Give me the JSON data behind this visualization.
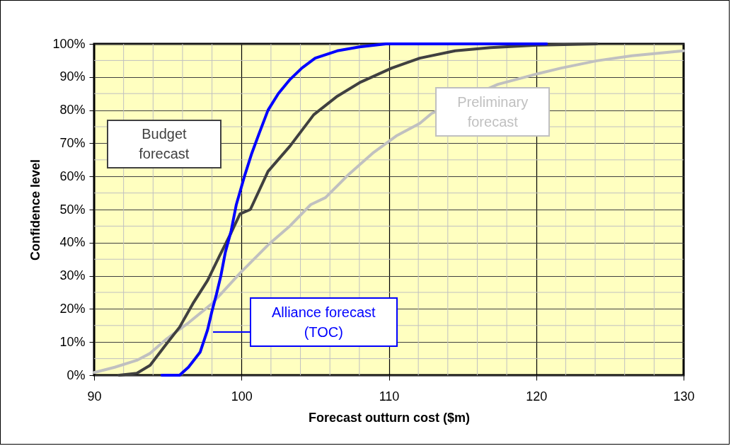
{
  "chart_data": {
    "type": "line",
    "xlabel": "Forecast outturn cost ($m)",
    "ylabel": "Confidence level",
    "xlim": [
      90,
      130
    ],
    "xticks": [
      90,
      100,
      110,
      120,
      130
    ],
    "ylim": [
      0,
      100
    ],
    "yticks": [
      {
        "value": 0,
        "label": "0%"
      },
      {
        "value": 10,
        "label": "10%"
      },
      {
        "value": 20,
        "label": "20%"
      },
      {
        "value": 30,
        "label": "30%"
      },
      {
        "value": 40,
        "label": "40%"
      },
      {
        "value": 50,
        "label": "50%"
      },
      {
        "value": 60,
        "label": "60%"
      },
      {
        "value": 70,
        "label": "70%"
      },
      {
        "value": 80,
        "label": "80%"
      },
      {
        "value": 90,
        "label": "90%"
      },
      {
        "value": 100,
        "label": "100%"
      }
    ],
    "grid": true,
    "series": [
      {
        "name": "Preliminary forecast",
        "color": "#c0c0c0",
        "x": [
          90,
          91.4,
          92.9,
          93.8,
          94.9,
          96.4,
          98.0,
          99.9,
          101.8,
          103.3,
          104.7,
          105.7,
          107.3,
          108.9,
          110.5,
          112.1,
          112.9,
          117.4,
          120.1,
          121.7,
          124.1,
          126.5,
          130
        ],
        "values": [
          0.8,
          2.4,
          4.5,
          6.6,
          10.9,
          15.8,
          21.6,
          30.8,
          39.3,
          45.1,
          51.5,
          53.6,
          60.7,
          67,
          72.2,
          76,
          79,
          87.8,
          91,
          92.7,
          94.9,
          96.4,
          97.9
        ]
      },
      {
        "name": "Budget forecast",
        "color": "#404040",
        "x": [
          91.7,
          92.9,
          93.8,
          94.8,
          95.8,
          96.7,
          97.7,
          98.5,
          99.3,
          99.9,
          100.6,
          101.8,
          103.3,
          104.9,
          106.5,
          108.1,
          110.2,
          112.1,
          114.5,
          116.9,
          120.1,
          124.1
        ],
        "values": [
          0,
          0.6,
          3,
          8.8,
          14.5,
          21.6,
          28.6,
          35.9,
          43,
          48.7,
          50,
          61.5,
          69.2,
          78.6,
          84.2,
          88.5,
          92.7,
          95.7,
          97.9,
          98.9,
          99.6,
          100
        ]
      },
      {
        "name": "Alliance forecast (TOC)",
        "color": "#0000ff",
        "x": [
          94.6,
          95.8,
          96.4,
          97.2,
          97.7,
          98.0,
          98.3,
          98.6,
          98.9,
          99.3,
          99.65,
          100.2,
          100.7,
          101.2,
          101.8,
          102.5,
          103.3,
          104.1,
          105.0,
          106.5,
          108.0,
          109.8,
          120.7
        ],
        "values": [
          0,
          0,
          2.4,
          7,
          13.7,
          19.4,
          24.4,
          30,
          37,
          43.6,
          51.5,
          60,
          67,
          73,
          80,
          85,
          89.3,
          92.7,
          95.7,
          97.9,
          99.1,
          100,
          100
        ]
      }
    ]
  }
}
